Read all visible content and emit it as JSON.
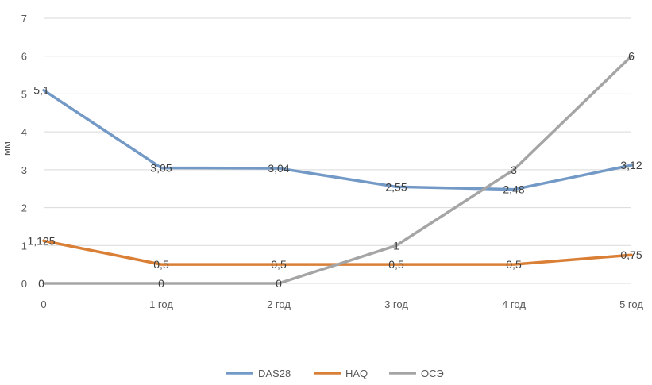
{
  "chart_data": {
    "type": "line",
    "title": "",
    "xlabel": "",
    "ylabel": "мм",
    "categories": [
      "0",
      "1 год",
      "2 год",
      "3 год",
      "4 год",
      "5 год"
    ],
    "ylim": [
      0,
      7
    ],
    "yticks": [
      "0",
      "1",
      "2",
      "3",
      "4",
      "5",
      "6",
      "7"
    ],
    "grid": true,
    "legend_position": "bottom",
    "series": [
      {
        "name": "DAS28",
        "color": "#7399c6",
        "values": [
          5.1,
          3.05,
          3.04,
          2.55,
          2.48,
          3.12
        ],
        "labels": [
          "5,1",
          "3,05",
          "3,04",
          "2,55",
          "2,48",
          "3,12"
        ]
      },
      {
        "name": "HAQ",
        "color": "#d97f36",
        "values": [
          1.125,
          0.5,
          0.5,
          0.5,
          0.5,
          0.75
        ],
        "labels": [
          "1,125",
          "0,5",
          "0,5",
          "0,5",
          "0,5",
          "0,75"
        ]
      },
      {
        "name": "ОСЭ",
        "color": "#a5a5a5",
        "values": [
          0,
          0,
          0,
          1,
          3,
          6
        ],
        "labels": [
          "0",
          "0",
          "0",
          "1",
          "3",
          "6"
        ]
      }
    ]
  }
}
